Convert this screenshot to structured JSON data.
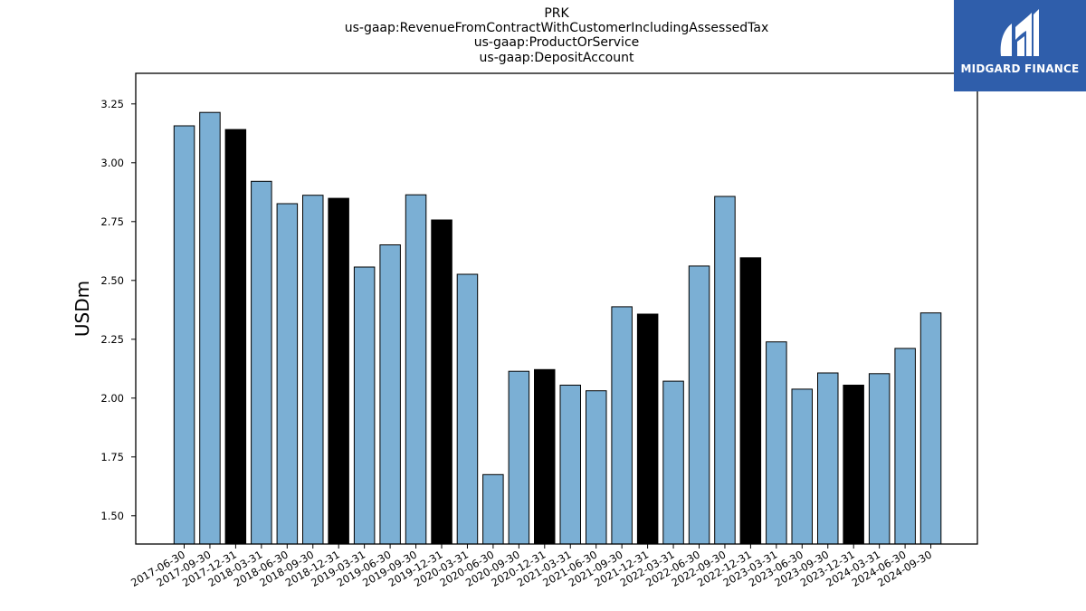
{
  "titles": [
    "PRK",
    "us-gaap:RevenueFromContractWithCustomerIncludingAssessedTax",
    "us-gaap:ProductOrService",
    "us-gaap:DepositAccount"
  ],
  "logo": {
    "text": "MIDGARD FINANCE",
    "icon": "midgard-logo-icon"
  },
  "colors": {
    "regular": "#7bafd4",
    "fiscal_q4": "#000000",
    "logo_bg": "#2f5eab"
  },
  "chart_data": {
    "type": "bar",
    "title": "",
    "ylabel": "USDm",
    "xlabel": "",
    "ylim": [
      1.38,
      3.38
    ],
    "yticks": [
      "1.50",
      "1.75",
      "2.00",
      "2.25",
      "2.50",
      "2.75",
      "3.00",
      "3.25"
    ],
    "grid": false,
    "categories": [
      "2017-06-30",
      "2017-09-30",
      "2017-12-31",
      "2018-03-31",
      "2018-06-30",
      "2018-09-30",
      "2018-12-31",
      "2019-03-31",
      "2019-06-30",
      "2019-09-30",
      "2019-12-31",
      "2020-03-31",
      "2020-06-30",
      "2020-09-30",
      "2020-12-31",
      "2021-03-31",
      "2021-06-30",
      "2021-09-30",
      "2021-12-31",
      "2022-03-31",
      "2022-06-30",
      "2022-09-30",
      "2022-12-31",
      "2023-03-31",
      "2023-06-30",
      "2023-09-30",
      "2023-12-31",
      "2024-03-31",
      "2024-06-30",
      "2024-09-30"
    ],
    "values": [
      3.157,
      3.214,
      3.141,
      2.921,
      2.826,
      2.862,
      2.849,
      2.557,
      2.651,
      2.864,
      2.757,
      2.526,
      1.675,
      2.114,
      2.121,
      2.055,
      2.031,
      2.388,
      2.357,
      2.072,
      2.561,
      2.857,
      2.596,
      2.239,
      2.038,
      2.107,
      2.055,
      2.104,
      2.211,
      2.362
    ],
    "highlight": [
      false,
      false,
      true,
      false,
      false,
      false,
      true,
      false,
      false,
      false,
      true,
      false,
      false,
      false,
      true,
      false,
      false,
      false,
      true,
      false,
      false,
      false,
      true,
      false,
      false,
      false,
      true,
      false,
      false,
      false
    ]
  }
}
